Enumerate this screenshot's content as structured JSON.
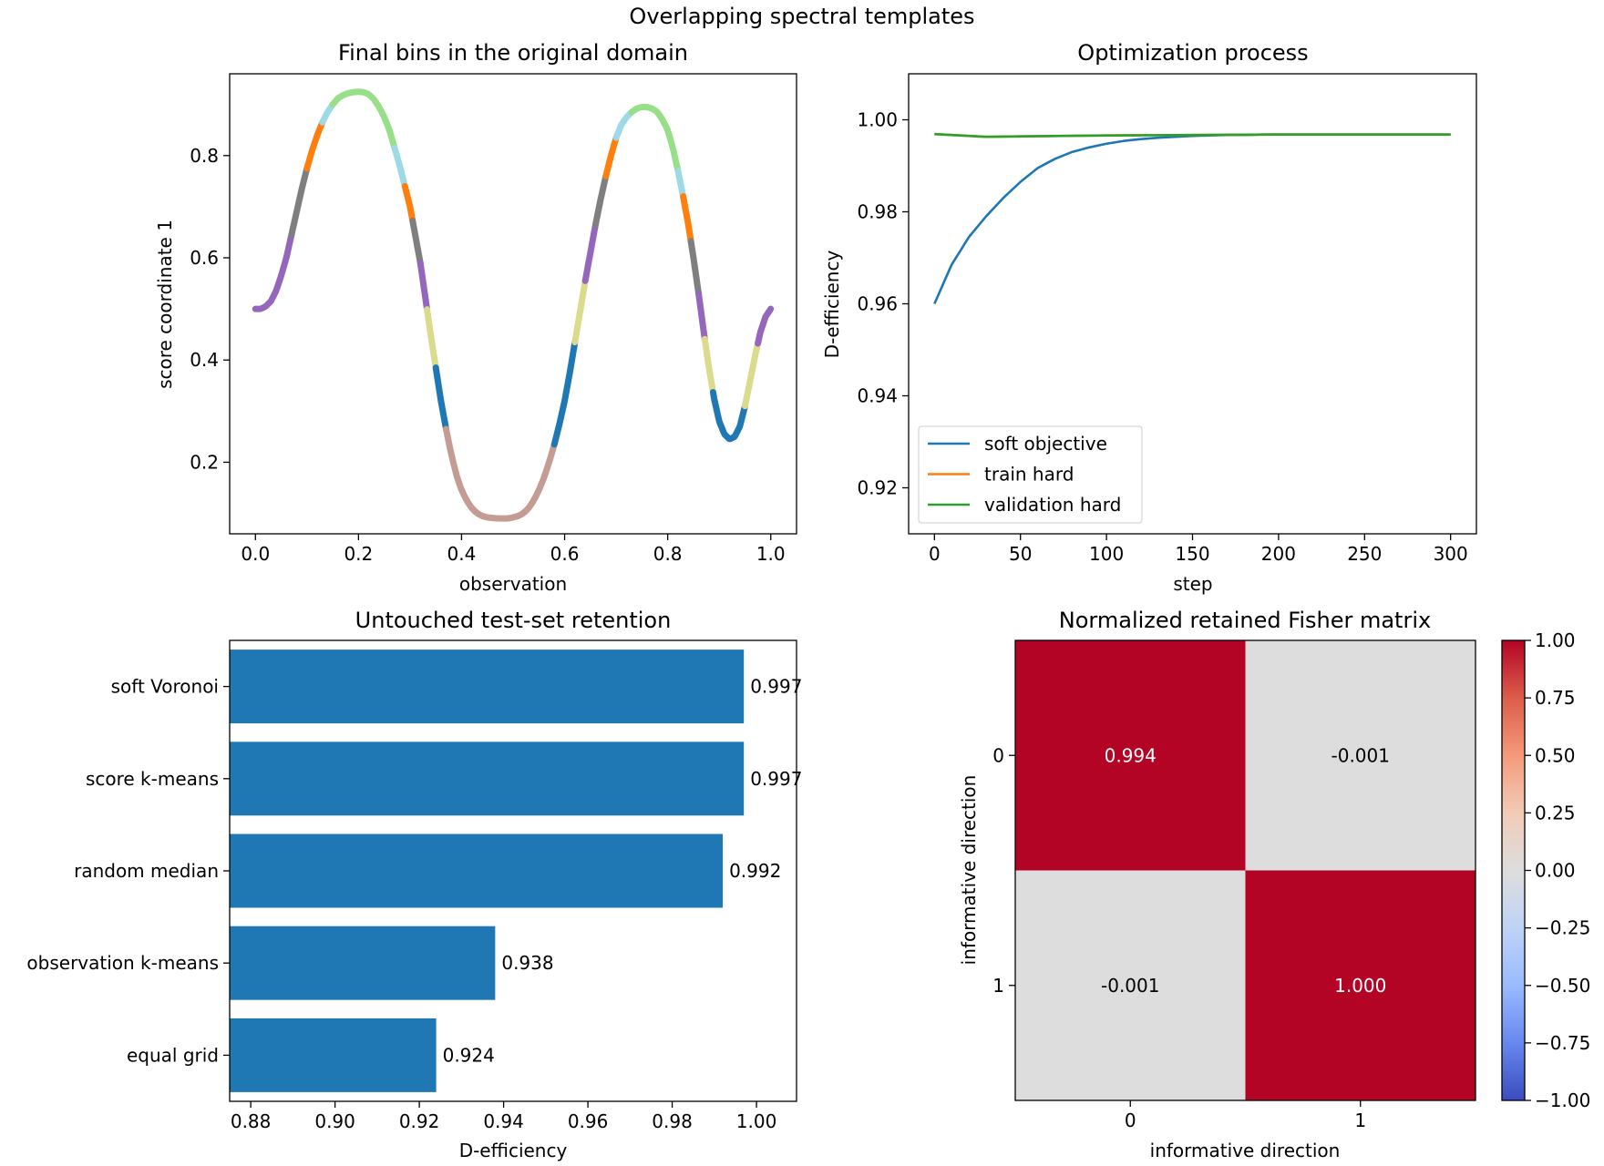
{
  "suptitle": "Overlapping spectral templates",
  "chart_data": [
    {
      "type": "line",
      "title": "Final bins in the original domain",
      "xlabel": "observation",
      "ylabel": "score coordinate 1",
      "xlim": [
        -0.05,
        1.05
      ],
      "ylim": [
        0.06,
        0.96
      ],
      "x_ticks": [
        0.0,
        0.2,
        0.4,
        0.6,
        0.8,
        1.0
      ],
      "x_tick_labels": [
        "0.0",
        "0.2",
        "0.4",
        "0.6",
        "0.8",
        "1.0"
      ],
      "y_ticks": [
        0.2,
        0.4,
        0.6,
        0.8
      ],
      "y_tick_labels": [
        "0.2",
        "0.4",
        "0.6",
        "0.8"
      ],
      "curve_samples_x": [
        0.0,
        0.01,
        0.02,
        0.03,
        0.04,
        0.05,
        0.06,
        0.07,
        0.08,
        0.09,
        0.1,
        0.11,
        0.12,
        0.13,
        0.14,
        0.15,
        0.16,
        0.17,
        0.18,
        0.19,
        0.2,
        0.21,
        0.22,
        0.23,
        0.24,
        0.25,
        0.26,
        0.27,
        0.28,
        0.29,
        0.3,
        0.31,
        0.32,
        0.33,
        0.34,
        0.35,
        0.36,
        0.37,
        0.38,
        0.39,
        0.4,
        0.41,
        0.42,
        0.43,
        0.44,
        0.45,
        0.46,
        0.47,
        0.48,
        0.49,
        0.5,
        0.51,
        0.52,
        0.53,
        0.54,
        0.55,
        0.56,
        0.57,
        0.58,
        0.59,
        0.6,
        0.61,
        0.62,
        0.63,
        0.64,
        0.65,
        0.66,
        0.67,
        0.68,
        0.69,
        0.7,
        0.71,
        0.72,
        0.73,
        0.74,
        0.75,
        0.76,
        0.77,
        0.78,
        0.79,
        0.8,
        0.81,
        0.82,
        0.83,
        0.84,
        0.85,
        0.86,
        0.87,
        0.88,
        0.89,
        0.9,
        0.91,
        0.92,
        0.93,
        0.94,
        0.95,
        0.96,
        0.97,
        0.98,
        0.99,
        1.0
      ],
      "curve_samples_y": [
        0.5,
        0.5,
        0.505,
        0.515,
        0.535,
        0.565,
        0.6,
        0.645,
        0.69,
        0.735,
        0.775,
        0.81,
        0.84,
        0.865,
        0.885,
        0.9,
        0.912,
        0.918,
        0.922,
        0.924,
        0.925,
        0.924,
        0.92,
        0.91,
        0.895,
        0.875,
        0.85,
        0.815,
        0.78,
        0.74,
        0.7,
        0.645,
        0.59,
        0.52,
        0.45,
        0.385,
        0.32,
        0.265,
        0.215,
        0.175,
        0.145,
        0.125,
        0.11,
        0.1,
        0.095,
        0.092,
        0.091,
        0.09,
        0.09,
        0.09,
        0.092,
        0.095,
        0.1,
        0.11,
        0.125,
        0.145,
        0.17,
        0.2,
        0.235,
        0.275,
        0.32,
        0.375,
        0.435,
        0.495,
        0.555,
        0.61,
        0.665,
        0.715,
        0.76,
        0.8,
        0.835,
        0.86,
        0.875,
        0.885,
        0.892,
        0.895,
        0.895,
        0.892,
        0.885,
        0.87,
        0.85,
        0.815,
        0.77,
        0.72,
        0.665,
        0.6,
        0.53,
        0.455,
        0.385,
        0.325,
        0.28,
        0.255,
        0.245,
        0.25,
        0.27,
        0.31,
        0.36,
        0.41,
        0.455,
        0.485,
        0.5
      ],
      "bin_segments": [
        {
          "x": [
            0.0,
            0.07
          ],
          "color": "#9467bd"
        },
        {
          "x": [
            0.07,
            0.1
          ],
          "color": "#7f7f7f"
        },
        {
          "x": [
            0.1,
            0.13
          ],
          "color": "#ff7f0e"
        },
        {
          "x": [
            0.13,
            0.15
          ],
          "color": "#9edae5"
        },
        {
          "x": [
            0.15,
            0.27
          ],
          "color": "#98df8a"
        },
        {
          "x": [
            0.27,
            0.29
          ],
          "color": "#9edae5"
        },
        {
          "x": [
            0.29,
            0.305
          ],
          "color": "#ff7f0e"
        },
        {
          "x": [
            0.305,
            0.32
          ],
          "color": "#7f7f7f"
        },
        {
          "x": [
            0.32,
            0.333
          ],
          "color": "#9467bd"
        },
        {
          "x": [
            0.333,
            0.35
          ],
          "color": "#dbdb8d"
        },
        {
          "x": [
            0.35,
            0.37
          ],
          "color": "#1f77b4"
        },
        {
          "x": [
            0.37,
            0.58
          ],
          "color": "#c49c94"
        },
        {
          "x": [
            0.58,
            0.62
          ],
          "color": "#1f77b4"
        },
        {
          "x": [
            0.62,
            0.64
          ],
          "color": "#dbdb8d"
        },
        {
          "x": [
            0.64,
            0.66
          ],
          "color": "#9467bd"
        },
        {
          "x": [
            0.66,
            0.68
          ],
          "color": "#7f7f7f"
        },
        {
          "x": [
            0.68,
            0.7
          ],
          "color": "#ff7f0e"
        },
        {
          "x": [
            0.7,
            0.73
          ],
          "color": "#9edae5"
        },
        {
          "x": [
            0.73,
            0.82
          ],
          "color": "#98df8a"
        },
        {
          "x": [
            0.82,
            0.83
          ],
          "color": "#9edae5"
        },
        {
          "x": [
            0.83,
            0.845
          ],
          "color": "#ff7f0e"
        },
        {
          "x": [
            0.845,
            0.86
          ],
          "color": "#7f7f7f"
        },
        {
          "x": [
            0.86,
            0.872
          ],
          "color": "#9467bd"
        },
        {
          "x": [
            0.872,
            0.888
          ],
          "color": "#dbdb8d"
        },
        {
          "x": [
            0.888,
            0.95
          ],
          "color": "#1f77b4"
        },
        {
          "x": [
            0.95,
            0.975
          ],
          "color": "#dbdb8d"
        },
        {
          "x": [
            0.975,
            1.0
          ],
          "color": "#9467bd"
        }
      ]
    },
    {
      "type": "line",
      "title": "Optimization process",
      "xlabel": "step",
      "ylabel": "D-efficiency",
      "xlim": [
        -15,
        315
      ],
      "ylim": [
        0.91,
        1.01
      ],
      "x_ticks": [
        0,
        50,
        100,
        150,
        200,
        250,
        300
      ],
      "x_tick_labels": [
        "0",
        "50",
        "100",
        "150",
        "200",
        "250",
        "300"
      ],
      "y_ticks": [
        0.92,
        0.94,
        0.96,
        0.98,
        1.0
      ],
      "y_tick_labels": [
        "0.92",
        "0.94",
        "0.96",
        "0.98",
        "1.00"
      ],
      "legend": "lower-left",
      "series": [
        {
          "name": "soft objective",
          "color": "#1f77b4",
          "x": [
            0,
            10,
            20,
            30,
            40,
            50,
            60,
            70,
            80,
            90,
            100,
            110,
            120,
            130,
            140,
            150,
            160,
            170,
            180,
            190,
            200,
            220,
            240,
            260,
            280,
            300
          ],
          "y": [
            0.96,
            0.9685,
            0.9745,
            0.979,
            0.983,
            0.9865,
            0.9895,
            0.9915,
            0.993,
            0.994,
            0.9948,
            0.9954,
            0.9958,
            0.9961,
            0.9963,
            0.9965,
            0.9966,
            0.9967,
            0.9967,
            0.9968,
            0.9968,
            0.9968,
            0.9968,
            0.9968,
            0.9968,
            0.9968
          ]
        },
        {
          "name": "train hard",
          "color": "#ff7f0e",
          "x": [
            0,
            15,
            30,
            50,
            75,
            100,
            150,
            200,
            250,
            300
          ],
          "y": [
            0.9969,
            0.9966,
            0.9963,
            0.9964,
            0.9965,
            0.9966,
            0.9967,
            0.9968,
            0.9968,
            0.9968
          ]
        },
        {
          "name": "validation hard",
          "color": "#2ca02c",
          "x": [
            0,
            15,
            30,
            50,
            75,
            100,
            150,
            200,
            250,
            300
          ],
          "y": [
            0.9969,
            0.9966,
            0.9963,
            0.9964,
            0.9965,
            0.9966,
            0.9967,
            0.9968,
            0.9968,
            0.9968
          ]
        }
      ]
    },
    {
      "type": "bar",
      "orientation": "horizontal",
      "title": "Untouched test-set retention",
      "xlabel": "D-efficiency",
      "ylabel": "",
      "xlim": [
        0.875,
        1.0095
      ],
      "x_ticks": [
        0.88,
        0.9,
        0.92,
        0.94,
        0.96,
        0.98,
        1.0
      ],
      "x_tick_labels": [
        "0.88",
        "0.90",
        "0.92",
        "0.94",
        "0.96",
        "0.98",
        "1.00"
      ],
      "color": "#1f77b4",
      "categories": [
        "soft Voronoi",
        "score k-means",
        "random median",
        "observation k-means",
        "equal grid"
      ],
      "values": [
        0.997,
        0.997,
        0.992,
        0.938,
        0.924
      ],
      "value_labels": [
        "0.997",
        "0.997",
        "0.992",
        "0.938",
        "0.924"
      ]
    },
    {
      "type": "heatmap",
      "title": "Normalized retained Fisher matrix",
      "xlabel": "informative direction",
      "ylabel": "informative direction",
      "x_tick_labels": [
        "0",
        "1"
      ],
      "y_tick_labels": [
        "0",
        "1"
      ],
      "colormap": "coolwarm",
      "vmin": -1.0,
      "vmax": 1.0,
      "matrix": [
        [
          0.994,
          -0.001
        ],
        [
          -0.001,
          1.0
        ]
      ],
      "cell_labels": [
        [
          "0.994",
          "-0.001"
        ],
        [
          "-0.001",
          "1.000"
        ]
      ],
      "cell_colors": [
        [
          "#b40426",
          "#dddddd"
        ],
        [
          "#dddddd",
          "#b40426"
        ]
      ],
      "cell_text_colors": [
        [
          "#ffffff",
          "#000000"
        ],
        [
          "#000000",
          "#ffffff"
        ]
      ],
      "colorbar_ticks": [
        1.0,
        0.75,
        0.5,
        0.25,
        0.0,
        -0.25,
        -0.5,
        -0.75,
        -1.0
      ],
      "colorbar_tick_labels": [
        "1.00",
        "0.75",
        "0.50",
        "0.25",
        "0.00",
        "−0.25",
        "−0.50",
        "−0.75",
        "−1.00"
      ],
      "colorbar_stops": [
        "#b40426",
        "#dc5d4a",
        "#f49a7b",
        "#f2cbb7",
        "#dddddd",
        "#bfd3f6",
        "#9abbff",
        "#6788ee",
        "#3b4cc0"
      ]
    }
  ]
}
